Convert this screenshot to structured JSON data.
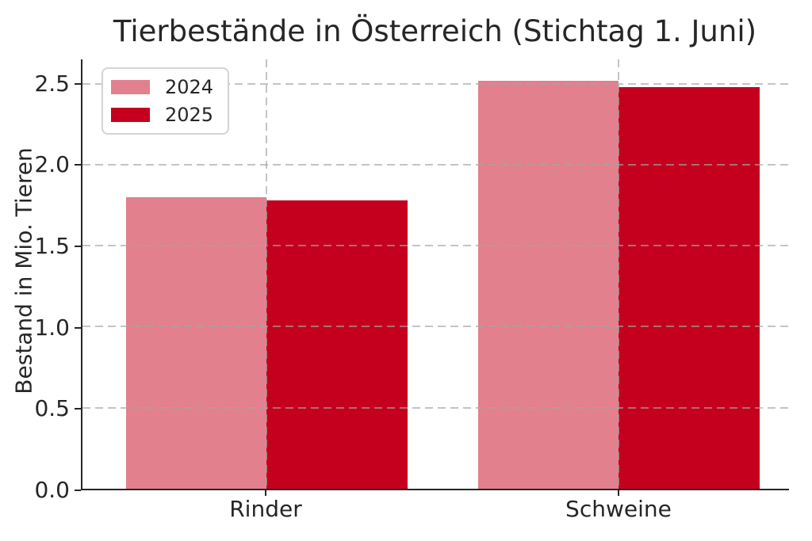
{
  "title": "Tierbestände in Österreich (Stichtag 1. Juni)",
  "colors": {
    "series_2024": "#E2808D",
    "series_2025": "#C4001E",
    "grid": "#a5a5a5",
    "axis": "#262626",
    "text": "#262626",
    "legend_border": "#d4d4d4",
    "background": "#ffffff"
  },
  "chart_data": {
    "type": "bar",
    "title": "Tierbestände in Österreich (Stichtag 1. Juni)",
    "categories": [
      "Rinder",
      "Schweine"
    ],
    "series": [
      {
        "name": "2024",
        "values": [
          1.8,
          2.52
        ],
        "color": "#E2808D"
      },
      {
        "name": "2025",
        "values": [
          1.78,
          2.48
        ],
        "color": "#C4001E"
      }
    ],
    "xlabel": "",
    "ylabel": "Bestand in Mio. Tieren",
    "ylim": [
      0,
      2.65
    ],
    "yticks": [
      0.0,
      0.5,
      1.0,
      1.5,
      2.0,
      2.5
    ],
    "ytick_labels": [
      "0.0",
      "0.5",
      "1.0",
      "1.5",
      "2.0",
      "2.5"
    ],
    "grid": "dashed-both-axes-above-bars",
    "legend_position": "upper-left"
  }
}
